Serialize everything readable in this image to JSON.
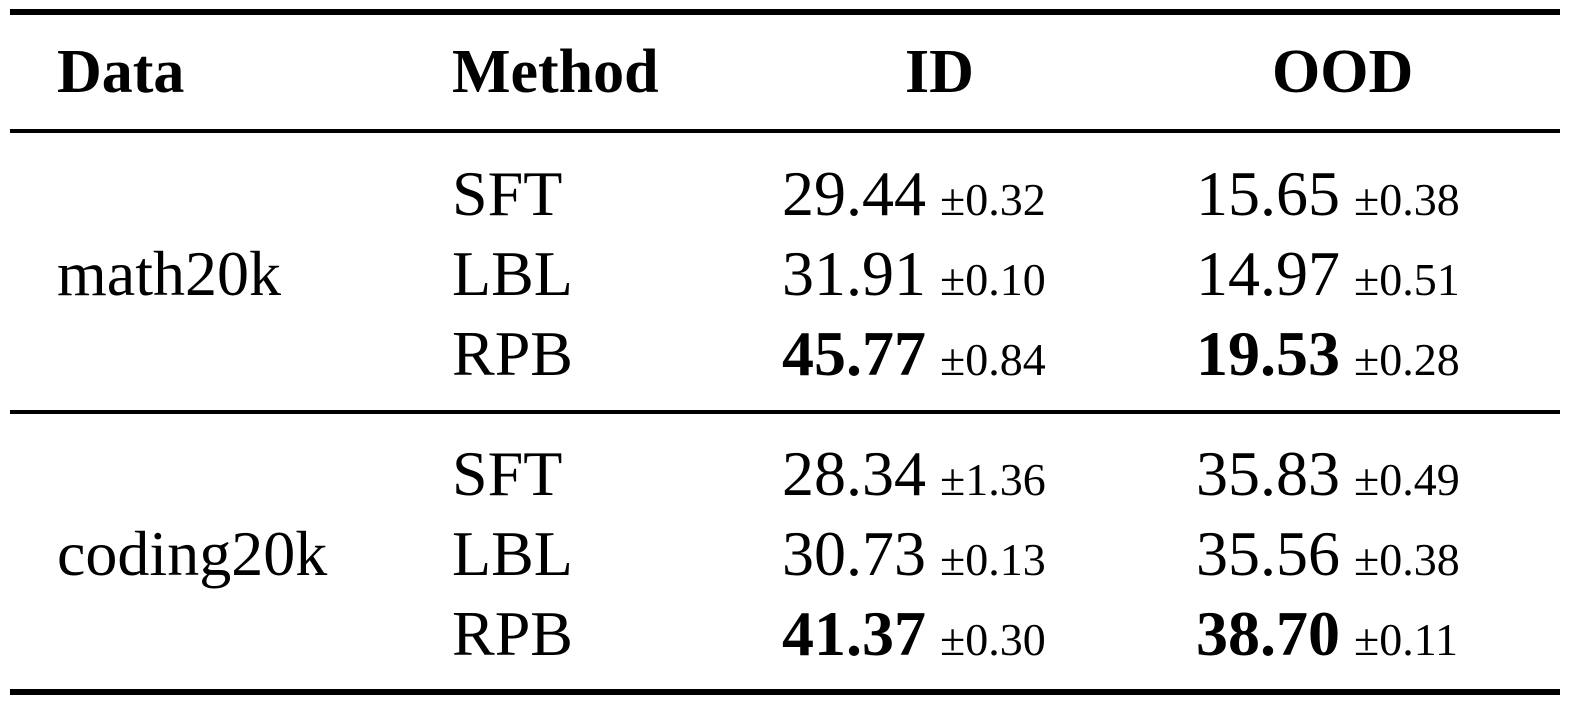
{
  "table": {
    "headers": {
      "data": "Data",
      "method": "Method",
      "id": "ID",
      "ood": "OOD"
    },
    "groups": [
      {
        "data": "math20k",
        "rows": [
          {
            "method": "SFT",
            "id": "29.44",
            "id_sd": "±0.32",
            "ood": "15.65",
            "ood_sd": "±0.38",
            "best": false
          },
          {
            "method": "LBL",
            "id": "31.91",
            "id_sd": "±0.10",
            "ood": "14.97",
            "ood_sd": "±0.51",
            "best": false
          },
          {
            "method": "RPB",
            "id": "45.77",
            "id_sd": "±0.84",
            "ood": "19.53",
            "ood_sd": "±0.28",
            "best": true
          }
        ]
      },
      {
        "data": "coding20k",
        "rows": [
          {
            "method": "SFT",
            "id": "28.34",
            "id_sd": "±1.36",
            "ood": "35.83",
            "ood_sd": "±0.49",
            "best": false
          },
          {
            "method": "LBL",
            "id": "30.73",
            "id_sd": "±0.13",
            "ood": "35.56",
            "ood_sd": "±0.38",
            "best": false
          },
          {
            "method": "RPB",
            "id": "41.37",
            "id_sd": "±0.30",
            "ood": "38.70",
            "ood_sd": "±0.11",
            "best": true
          }
        ]
      }
    ]
  }
}
